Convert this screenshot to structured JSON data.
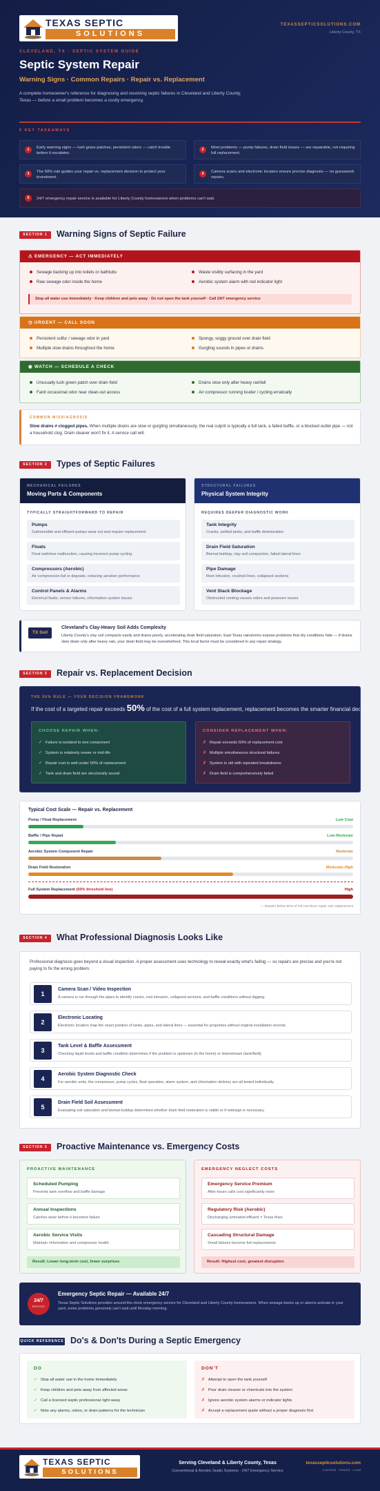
{
  "header": {
    "logo_top": "TEXAS SEPTIC",
    "logo_bottom": "SOLUTIONS",
    "site": "TEXASSEPTICSOLUTIONS.COM",
    "location": "Liberty County, TX",
    "eyebrow": "CLEVELAND, TX · SEPTIC SYSTEM GUIDE",
    "title": "Septic System Repair",
    "subtitle": "Warning Signs · Common Repairs · Repair vs. Replacement",
    "intro": "A complete homeowner's reference for diagnosing and resolving septic failures in Cleveland and Liberty County, Texas — before a small problem becomes a costly emergency."
  },
  "takeaways": {
    "label": "5 KEY TAKEAWAYS",
    "items": [
      {
        "number": 1,
        "text": "Early warning signs — lush grass patches, persistent odors — catch trouble before it escalates."
      },
      {
        "number": 2,
        "text": "Most problems — pump failures, drain field issues — are repairable, not requiring full replacement."
      },
      {
        "number": 3,
        "text": "The 50% rule guides your repair vs. replacement decision to protect your investment."
      },
      {
        "number": 4,
        "text": "Camera scans and electronic locators ensure precise diagnosis — no guesswork repairs."
      },
      {
        "number": 5,
        "text": "24/7 emergency repair service is available for Liberty County homeowners when problems can't wait."
      }
    ]
  },
  "section1": {
    "badge": "SECTION 1",
    "heading": "Warning Signs of Septic Failure",
    "levels": [
      {
        "title": "EMERGENCY — ACT IMMEDIATELY",
        "color": "#b3151c",
        "items": [
          "Sewage backing up into toilets or bathtubs",
          "Raw sewage odor inside the home",
          "Waste visibly surfacing in the yard",
          "Aerobic system alarm with red indicator light"
        ],
        "alert": "Stop all water use immediately · Keep children and pets away · Do not open the tank yourself · Call 24/7 emergency service"
      },
      {
        "title": "URGENT — CALL SOON",
        "color": "#d9731a",
        "items": [
          "Persistent sulfur / sewage odor in yard",
          "Multiple slow drains throughout the home",
          "Spongy, soggy ground over drain field",
          "Gurgling sounds in pipes or drains"
        ]
      },
      {
        "title": "WATCH — SCHEDULE A CHECK",
        "color": "#2f6b2f",
        "items": [
          "Unusually lush green patch over drain field",
          "Faint occasional odor near clean-out access",
          "Drains slow only after heavy rainfall",
          "Air compressor running louder / cycling erratically"
        ]
      }
    ],
    "misdiagnosis": {
      "label": "COMMON MISDIAGNOSIS",
      "lead": "Slow drains ≠ clogged pipes.",
      "text": "When multiple drains are slow or gurgling simultaneously, the real culprit is typically a full tank, a failed baffle, or a blocked outlet pipe — not a household clog. Drain cleaner won't fix it. A service call will."
    }
  },
  "section2": {
    "badge": "SECTION 2",
    "heading": "Types of Septic Failures",
    "columns": [
      {
        "label": "MECHANICAL FAILURES",
        "title": "Moving Parts & Components",
        "subhead": "TYPICALLY STRAIGHTFORWARD TO REPAIR",
        "items": [
          {
            "title": "Pumps",
            "text": "Submersible and effluent pumps wear out and require replacement"
          },
          {
            "title": "Floats",
            "text": "Float switches malfunction, causing incorrect pump cycling"
          },
          {
            "title": "Compressors (Aerobic)",
            "text": "Air compressors fail or degrade, reducing aeration performance"
          },
          {
            "title": "Control Panels & Alarms",
            "text": "Electrical faults, sensor failures, chlorination system issues"
          }
        ]
      },
      {
        "label": "STRUCTURAL FAILURES",
        "title": "Physical System Integrity",
        "subhead": "REQUIRES DEEPER DIAGNOSTIC WORK",
        "items": [
          {
            "title": "Tank Integrity",
            "text": "Cracks, settled tanks, and baffle deterioration"
          },
          {
            "title": "Drain Field Saturation",
            "text": "Biomat buildup, clay soil compaction, failed lateral lines"
          },
          {
            "title": "Pipe Damage",
            "text": "Root intrusion, crushed lines, collapsed sections"
          },
          {
            "title": "Vent Stack Blockage",
            "text": "Obstructed venting causes odors and pressure issues"
          }
        ]
      }
    ],
    "soil": {
      "badge": "TX Soil",
      "title": "Cleveland's Clay-Heavy Soil Adds Complexity",
      "text": "Liberty County's clay soil compacts easily and drains poorly, accelerating drain field saturation. East Texas rainstorms expose problems that dry conditions hide — if drains slow down only after heavy rain, your drain field may be overwhelmed. This local factor must be considered in any repair strategy."
    }
  },
  "section3": {
    "badge": "SECTION 3",
    "heading": "Repair vs. Replacement Decision",
    "rule": {
      "label": "THE 50% RULE — YOUR DECISION FRAMEWORK",
      "before": "If the cost of a targeted repair exceeds ",
      "figure": "50%",
      "after": " of the cost of a full system replacement, replacement becomes the smarter financial decision."
    },
    "columns": [
      {
        "title": "CHOOSE REPAIR WHEN:",
        "items": [
          "Failure is isolated to one component",
          "System is relatively newer or mid-life",
          "Repair cost is well under 50% of replacement",
          "Tank and drain field are structurally sound"
        ]
      },
      {
        "title": "CONSIDER REPLACEMENT WHEN:",
        "items": [
          "Repair exceeds 50% of replacement cost",
          "Multiple simultaneous structural failures",
          "System is old with repeated breakdowns",
          "Drain field is comprehensively failed"
        ]
      }
    ],
    "cost_scale": {
      "title": "Typical Cost Scale — Repair vs. Replacement",
      "items": [
        {
          "name": "Pump / Float Replacement",
          "level": "Low Cost",
          "value": 17,
          "color": "#2e9e4f"
        },
        {
          "name": "Baffle / Pipe Repair",
          "level": "Low-Moderate",
          "value": 27,
          "color": "#3aa856"
        },
        {
          "name": "Aerobic System Component Repair",
          "level": "Moderate",
          "value": 41,
          "color": "#c98a4a"
        },
        {
          "name": "Drain Field Restoration",
          "level": "Moderate-High",
          "value": 63,
          "color": "#e58a1f"
        },
        {
          "name": "Full System Replacement",
          "note": "(50% threshold line)",
          "level": "High",
          "value": 100,
          "color": "#a01e1e"
        }
      ],
      "footnote": "— Repairs below 50% of full cost favor repair over replacement"
    }
  },
  "section4": {
    "badge": "SECTION 4",
    "heading": "What Professional Diagnosis Looks Like",
    "intro": "Professional diagnosis goes beyond a visual inspection. A proper assessment uses technology to reveal exactly what's failing — so repairs are precise and you're not paying to fix the wrong problem.",
    "steps": [
      {
        "number": 1,
        "title": "Camera Scan / Video Inspection",
        "text": "A camera is run through the pipes to identify cracks, root intrusion, collapsed sections, and baffle conditions without digging."
      },
      {
        "number": 2,
        "title": "Electronic Locating",
        "text": "Electronic locators map the exact position of tanks, pipes, and lateral lines — essential for properties without original installation records."
      },
      {
        "number": 3,
        "title": "Tank Level & Baffle Assessment",
        "text": "Checking liquid levels and baffle condition determines if the problem is upstream (in the home) or downstream (tank/field)."
      },
      {
        "number": 4,
        "title": "Aerobic System Diagnostic Check",
        "text": "For aerobic units, the compressor, pump cycles, float operation, alarm system, and chlorination delivery are all tested individually."
      },
      {
        "number": 5,
        "title": "Drain Field Soil Assessment",
        "text": "Evaluating soil saturation and biomat buildup determines whether drain field restoration is viable or if redesign is necessary."
      }
    ]
  },
  "section5": {
    "badge": "SECTION 5",
    "heading": "Proactive Maintenance vs. Emergency Costs",
    "columns": [
      {
        "title": "PROACTIVE MAINTENANCE",
        "items": [
          {
            "title": "Scheduled Pumping",
            "text": "Prevents tank overflow and baffle damage"
          },
          {
            "title": "Annual Inspections",
            "text": "Catches wear before it becomes failure"
          },
          {
            "title": "Aerobic Service Visits",
            "text": "Maintain chlorination and compressor health"
          }
        ],
        "result": "Result: Lower long-term cost, fewer surprises"
      },
      {
        "title": "EMERGENCY NEGLECT COSTS",
        "items": [
          {
            "title": "Emergency Service Premium",
            "text": "After-hours calls cost significantly more"
          },
          {
            "title": "Regulatory Risk (Aerobic)",
            "text": "Discharging untreated effluent = Texas fines"
          },
          {
            "title": "Cascading Structural Damage",
            "text": "Small failures become full replacements"
          }
        ],
        "result": "Result: Highest cost, greatest disruption"
      }
    ],
    "banner": {
      "badge_top": "24/7",
      "badge_bottom": "SERVICE",
      "title": "Emergency Septic Repair — Available 24/7",
      "text": "Texas Septic Solutions provides around-the-clock emergency service for Cleveland and Liberty County homeowners. When sewage backs up or alarms activate in your yard, some problems genuinely can't wait until Monday morning."
    }
  },
  "quick_reference": {
    "badge": "QUICK REFERENCE",
    "heading": "Do's & Don'ts During a Septic Emergency",
    "columns": [
      {
        "title": "DO",
        "items": [
          "Stop all water use in the home immediately",
          "Keep children and pets away from affected areas",
          "Call a licensed septic professional right away",
          "Note any alarms, odors, or drain patterns for the technician"
        ]
      },
      {
        "title": "DON'T",
        "items": [
          "Attempt to open the tank yourself",
          "Pour drain cleaner or chemicals into the system",
          "Ignore aerobic system alarms or indicator lights",
          "Accept a replacement quote without a proper diagnosis first"
        ]
      }
    ]
  },
  "footer": {
    "tagline": "Serving Cleveland & Liberty County, Texas",
    "services": "Conventional & Aerobic Septic Systems · 24/7 Emergency Service",
    "site": "texassepticsolutions.com",
    "credentials": "Licensed · Insured · Local"
  }
}
